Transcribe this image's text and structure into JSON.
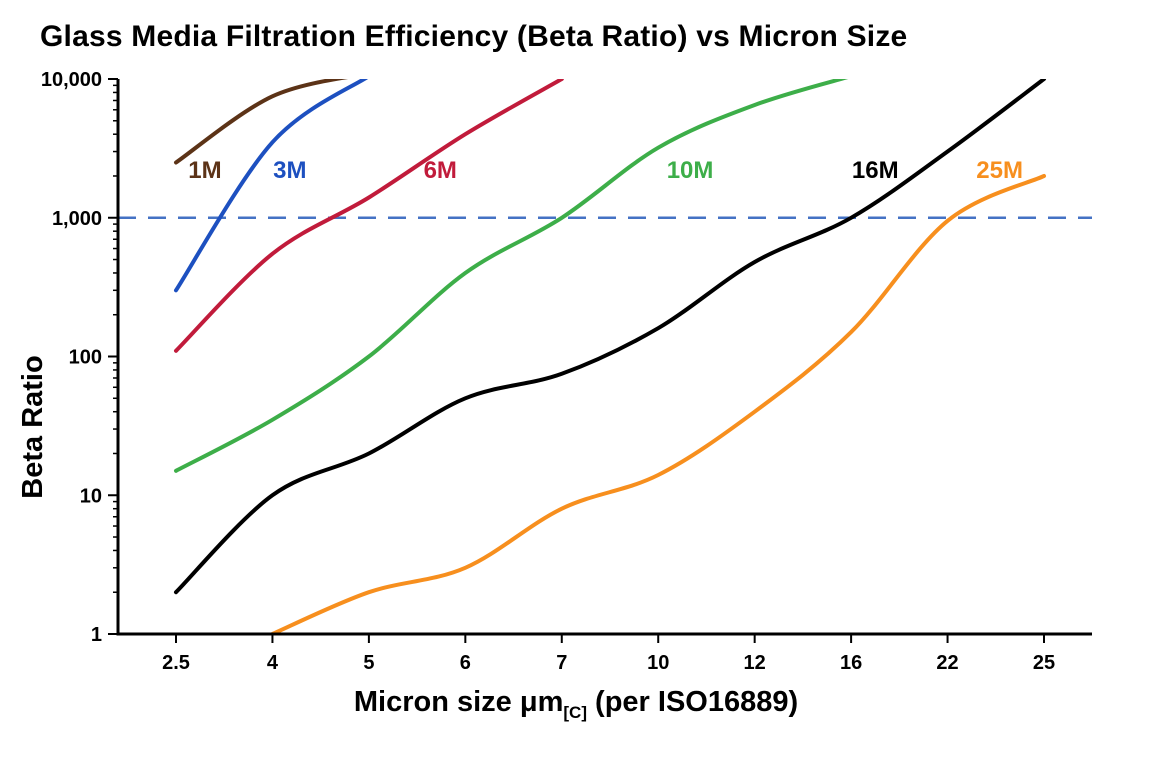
{
  "chart_data": {
    "type": "line",
    "title": "Glass Media Filtration Efficiency (Beta Ratio) vs Micron Size",
    "ylabel": "Beta Ratio",
    "xlabel_parts": {
      "main": "Micron size μm",
      "sub": "[C]",
      "rest": " (per ISO16889)"
    },
    "x_scale": "categorical",
    "y_scale": "log",
    "ylim": [
      1,
      10000
    ],
    "x_categories": [
      2.5,
      4,
      5,
      6,
      7,
      10,
      12,
      16,
      22,
      25
    ],
    "x_tick_labels": [
      "2.5",
      "4",
      "5",
      "6",
      "7",
      "10",
      "12",
      "16",
      "22",
      "25"
    ],
    "y_ticks": [
      {
        "value": 1,
        "label": "1"
      },
      {
        "value": 10,
        "label": "10"
      },
      {
        "value": 100,
        "label": "100"
      },
      {
        "value": 1000,
        "label": "1,000"
      },
      {
        "value": 10000,
        "label": "10,000"
      }
    ],
    "reference_line": {
      "y": 1000,
      "color": "#4472C4",
      "style": "dashed"
    },
    "axis_color": "#000000",
    "series": [
      {
        "name": "1M",
        "color": "#5C3317",
        "label_x": 0.3,
        "label_y": 2200,
        "points": [
          [
            2.5,
            2500
          ],
          [
            4,
            7500
          ],
          [
            5,
            11000
          ]
        ]
      },
      {
        "name": "3M",
        "color": "#1D50C0",
        "label_x": 1.18,
        "label_y": 2200,
        "points": [
          [
            2.5,
            300
          ],
          [
            4,
            3500
          ],
          [
            5,
            10500
          ]
        ]
      },
      {
        "name": "6M",
        "color": "#C11B3B",
        "label_x": 2.74,
        "label_y": 2200,
        "points": [
          [
            2.5,
            110
          ],
          [
            4,
            550
          ],
          [
            5,
            1400
          ],
          [
            6,
            4000
          ],
          [
            7,
            10000
          ]
        ]
      },
      {
        "name": "10M",
        "color": "#3DAE49",
        "label_x": 5.33,
        "label_y": 2200,
        "points": [
          [
            2.5,
            15
          ],
          [
            4,
            35
          ],
          [
            5,
            100
          ],
          [
            6,
            400
          ],
          [
            7,
            1000
          ],
          [
            10,
            3200
          ],
          [
            12,
            6500
          ],
          [
            16,
            10500
          ]
        ]
      },
      {
        "name": "16M",
        "color": "#000000",
        "label_x": 7.25,
        "label_y": 2200,
        "points": [
          [
            2.5,
            2
          ],
          [
            4,
            10
          ],
          [
            5,
            20
          ],
          [
            6,
            50
          ],
          [
            7,
            75
          ],
          [
            10,
            160
          ],
          [
            12,
            480
          ],
          [
            16,
            1000
          ],
          [
            22,
            3000
          ],
          [
            25,
            10000
          ]
        ]
      },
      {
        "name": "25M",
        "color": "#F78F1E",
        "label_x": 8.54,
        "label_y": 2200,
        "points": [
          [
            4,
            1
          ],
          [
            5,
            2
          ],
          [
            6,
            3
          ],
          [
            7,
            8
          ],
          [
            10,
            14
          ],
          [
            12,
            40
          ],
          [
            16,
            150
          ],
          [
            22,
            950
          ],
          [
            25,
            2000
          ]
        ]
      }
    ]
  }
}
